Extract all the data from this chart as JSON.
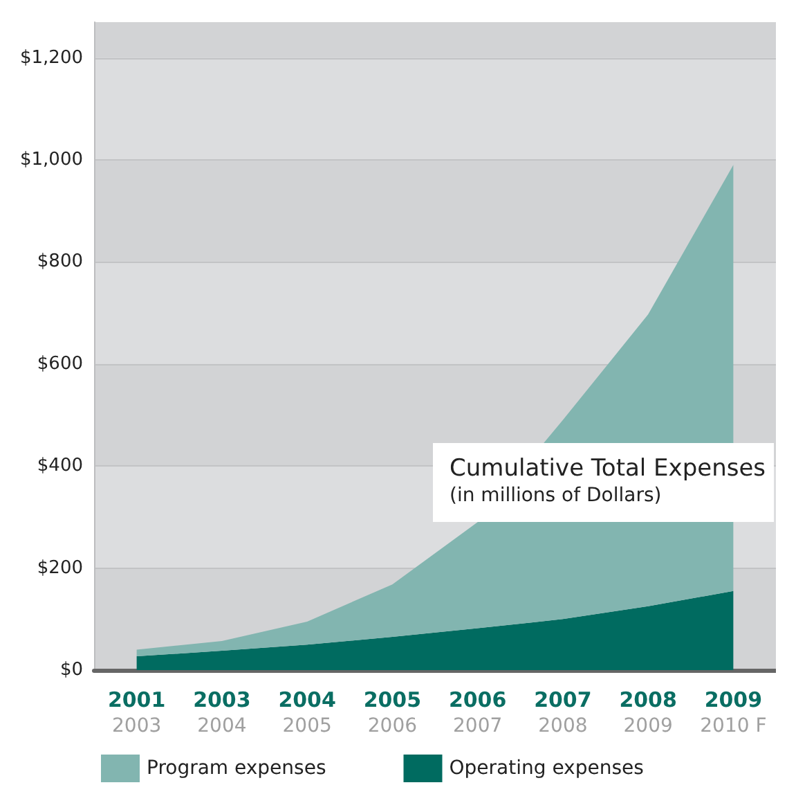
{
  "chart_data": {
    "type": "area",
    "stacked": true,
    "title": "Cumulative Total Expenses",
    "subtitle": "(in millions of Dollars)",
    "categories": [
      "2001\n2003",
      "2003\n2004",
      "2004\n2005",
      "2005\n2006",
      "2006\n2007",
      "2007\n2008",
      "2008\n2009",
      "2009\n2010 F"
    ],
    "series": [
      {
        "name": "Operating expenses",
        "color": "#006b60",
        "values": [
          27,
          38,
          50,
          65,
          82,
          100,
          125,
          155
        ]
      },
      {
        "name": "Program expenses",
        "color": "#82b5b0",
        "values": [
          13,
          19,
          45,
          103,
          208,
          390,
          572,
          835
        ]
      }
    ],
    "ylim": [
      0,
      1270
    ],
    "yticks": [
      {
        "value": 0,
        "label": "$0"
      },
      {
        "value": 200,
        "label": "$200"
      },
      {
        "value": 400,
        "label": "$400"
      },
      {
        "value": 600,
        "label": "$600"
      },
      {
        "value": 800,
        "label": "$800"
      },
      {
        "value": 1000,
        "label": "$1,000"
      },
      {
        "value": 1200,
        "label": "$1,200"
      }
    ],
    "grid": "y",
    "legend": "bottom",
    "marker": "none"
  }
}
